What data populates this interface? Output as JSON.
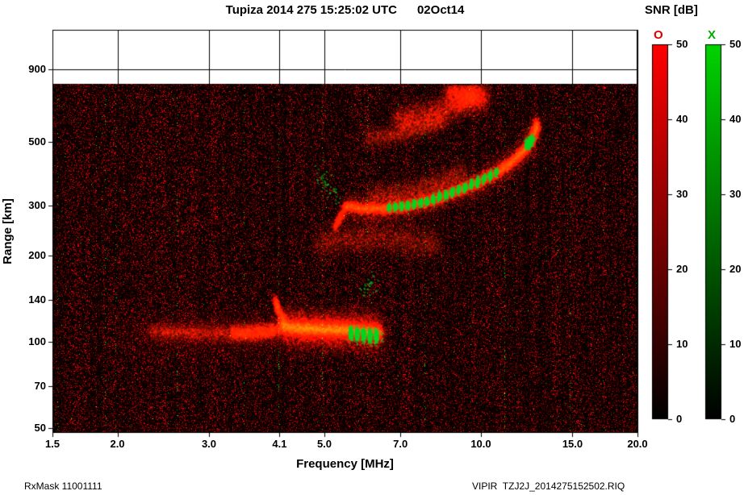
{
  "header": {
    "title": "Tupiza 2014 275 15:25:02 UTC      02Oct14"
  },
  "footer": {
    "rx_mask": "RxMask 11001111",
    "file": "VIPIR  TZJ2J_2014275152502.RIQ"
  },
  "colorbar": {
    "title": "SNR [dB]",
    "o_label": "O",
    "x_label": "X",
    "o_color": "#dd0000",
    "x_color": "#00aa00",
    "o_top_color": "#ff0000",
    "x_top_color": "#00d400",
    "bottom_color": "#000000",
    "min": 0,
    "max": 50,
    "ticks": [
      0,
      10,
      20,
      30,
      40,
      50
    ]
  },
  "chart_data": {
    "type": "heatmap",
    "title": "Tupiza 2014 275 15:25:02 UTC      02Oct14",
    "xlabel": "Frequency [MHz]",
    "ylabel": "Range [km]",
    "x_scale": "log",
    "y_scale": "log",
    "x_range": [
      1.5,
      20.0
    ],
    "x_tick_values": [
      1.5,
      2.0,
      3.0,
      4.1,
      5.0,
      7.0,
      10.0,
      15.0,
      20.0
    ],
    "x_tick_labels": [
      "1.5",
      "2.0",
      "3.0",
      "4.1",
      "5.0",
      "7.0",
      "10.0",
      "15.0",
      "20.0"
    ],
    "y_tick_values": [
      900,
      500,
      300,
      200,
      140,
      100,
      70,
      50
    ],
    "y_tick_labels": [
      "900",
      "500",
      "300",
      "200",
      "140",
      "100",
      "70",
      "50"
    ],
    "y_km_bottom": 48,
    "y_km_top": 1234,
    "data_max_range_km": 800,
    "grid": true,
    "background": "black-with-red-noise",
    "green_columns_mhz": [
      1.53,
      1.89,
      1.98,
      2.6,
      3.5,
      4.08,
      4.95,
      6.05,
      7.8,
      11.1,
      14.8
    ],
    "traces": [
      {
        "name": "e-layer-faint",
        "color": "red",
        "points": [
          [
            2.3,
            109
          ],
          [
            3.0,
            108
          ],
          [
            3.6,
            107
          ],
          [
            4.05,
            110
          ]
        ],
        "sigma": 6,
        "alpha": 0.055,
        "samples": 5000
      },
      {
        "name": "e-layer-mid",
        "color": "red",
        "points": [
          [
            3.3,
            108
          ],
          [
            4.05,
            110
          ]
        ],
        "sigma": 6,
        "alpha": 0.07,
        "samples": 2500
      },
      {
        "name": "e-layer-glow",
        "color": "red",
        "points": [
          [
            4.1,
            114
          ],
          [
            4.5,
            112
          ],
          [
            5.2,
            111
          ],
          [
            5.9,
            110
          ],
          [
            6.4,
            108
          ]
        ],
        "sigma": 13,
        "alpha": 0.09,
        "samples": 10000
      },
      {
        "name": "e-layer-core",
        "color": "red",
        "points": [
          [
            4.1,
            114
          ],
          [
            4.5,
            112
          ],
          [
            5.2,
            111
          ],
          [
            5.9,
            110
          ],
          [
            6.4,
            108
          ]
        ],
        "sigma": 4.5,
        "alpha": 0.3,
        "samples": 9000
      },
      {
        "name": "e-cusp",
        "color": "red",
        "points": [
          [
            4.0,
            142
          ],
          [
            4.07,
            128
          ],
          [
            4.2,
            117
          ]
        ],
        "sigma": 4,
        "alpha": 0.12,
        "samples": 1200
      },
      {
        "name": "e-green",
        "color": "green",
        "points": [
          [
            5.55,
            108
          ],
          [
            5.95,
            106
          ],
          [
            6.35,
            105
          ]
        ],
        "sigma": 4,
        "alpha": 0.5,
        "samples": 2600,
        "stripe": true
      },
      {
        "name": "f-tail",
        "color": "red",
        "points": [
          [
            5.2,
            252
          ],
          [
            5.45,
            290
          ]
        ],
        "sigma": 4,
        "alpha": 0.1,
        "samples": 700
      },
      {
        "name": "f-glow",
        "color": "red",
        "points": [
          [
            5.45,
            300
          ],
          [
            5.9,
            294
          ],
          [
            6.5,
            294
          ],
          [
            7.2,
            300
          ],
          [
            8.0,
            314
          ],
          [
            9.0,
            340
          ],
          [
            10.0,
            368
          ],
          [
            10.9,
            402
          ],
          [
            11.7,
            443
          ],
          [
            12.3,
            490
          ],
          [
            12.65,
            540
          ],
          [
            12.8,
            585
          ]
        ],
        "sigma": 9,
        "alpha": 0.08,
        "samples": 11000
      },
      {
        "name": "f-core",
        "color": "red",
        "points": [
          [
            5.45,
            300
          ],
          [
            5.9,
            294
          ],
          [
            6.5,
            294
          ],
          [
            7.2,
            300
          ],
          [
            8.0,
            314
          ],
          [
            9.0,
            340
          ],
          [
            10.0,
            368
          ],
          [
            10.9,
            402
          ],
          [
            11.7,
            443
          ],
          [
            12.3,
            490
          ],
          [
            12.65,
            540
          ],
          [
            12.8,
            585
          ]
        ],
        "sigma": 3,
        "alpha": 0.3,
        "samples": 8000
      },
      {
        "name": "f-green",
        "color": "green",
        "points": [
          [
            6.6,
            296
          ],
          [
            7.2,
            301
          ],
          [
            8.0,
            315
          ],
          [
            9.0,
            341
          ],
          [
            10.0,
            369
          ],
          [
            10.75,
            397
          ]
        ],
        "sigma": 2.6,
        "alpha": 0.55,
        "samples": 3600,
        "stripe": true
      },
      {
        "name": "f-green-top",
        "color": "green",
        "points": [
          [
            12.25,
            487
          ],
          [
            12.45,
            515
          ]
        ],
        "sigma": 2.5,
        "alpha": 0.5,
        "samples": 500
      },
      {
        "name": "f-spread",
        "color": "red",
        "points": [
          [
            6.1,
            325
          ],
          [
            6.7,
            327
          ],
          [
            7.4,
            340
          ],
          [
            8.4,
            367
          ],
          [
            9.3,
            397
          ]
        ],
        "sigma": 9,
        "alpha": 0.05,
        "samples": 4500
      },
      {
        "name": "mid-layer",
        "color": "red",
        "points": [
          [
            4.8,
            220
          ],
          [
            5.5,
            230
          ],
          [
            6.3,
            233
          ],
          [
            7.2,
            228
          ],
          [
            8.3,
            219
          ]
        ],
        "sigma": 11,
        "alpha": 0.06,
        "samples": 5500
      },
      {
        "name": "hop2-upper",
        "color": "red",
        "points": [
          [
            6.8,
            600
          ],
          [
            8.0,
            630
          ],
          [
            9.0,
            670
          ],
          [
            9.8,
            725
          ]
        ],
        "sigma": 10,
        "alpha": 0.08,
        "samples": 5000
      },
      {
        "name": "hop2-lower",
        "color": "red",
        "points": [
          [
            5.95,
            520
          ],
          [
            6.6,
            525
          ],
          [
            7.5,
            555
          ],
          [
            8.5,
            600
          ]
        ],
        "sigma": 7,
        "alpha": 0.06,
        "samples": 3000
      },
      {
        "name": "top-patch",
        "color": "red",
        "points": [
          [
            8.6,
            755
          ],
          [
            9.4,
            738
          ],
          [
            10.2,
            716
          ]
        ],
        "sigma": 10,
        "alpha": 0.09,
        "samples": 3500
      },
      {
        "name": "es-green-specks",
        "color": "green",
        "points": [
          [
            5.9,
            150
          ],
          [
            6.3,
            172
          ]
        ],
        "sigma": 6,
        "alpha": 0.5,
        "samples": 30
      },
      {
        "name": "f-leading-specks",
        "color": "green",
        "points": [
          [
            4.85,
            400
          ],
          [
            5.35,
            315
          ]
        ],
        "sigma": 7,
        "alpha": 0.5,
        "samples": 45
      }
    ]
  }
}
